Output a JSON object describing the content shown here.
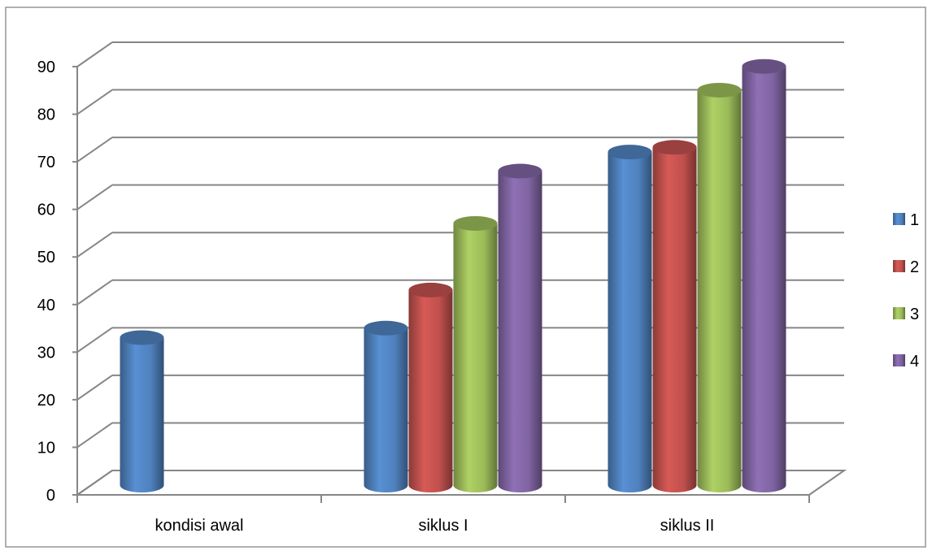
{
  "chart_data": {
    "type": "bar",
    "style": "3d-cylinder",
    "categories": [
      "kondisi awal",
      "siklus I",
      "siklus II"
    ],
    "series": [
      {
        "name": "1",
        "color": "#4f81bd",
        "values": [
          31,
          33,
          70
        ]
      },
      {
        "name": "2",
        "color": "#c0504d",
        "values": [
          null,
          41,
          71
        ]
      },
      {
        "name": "3",
        "color": "#9bbb59",
        "values": [
          null,
          55,
          83
        ]
      },
      {
        "name": "4",
        "color": "#8064a2",
        "values": [
          null,
          66,
          88
        ]
      }
    ],
    "ylim": [
      0,
      90
    ],
    "yticks": [
      "0",
      "10",
      "20",
      "30",
      "40",
      "50",
      "60",
      "70",
      "80",
      "90"
    ],
    "grid": true,
    "legend": "right",
    "title": "",
    "xlabel": "",
    "ylabel": ""
  }
}
